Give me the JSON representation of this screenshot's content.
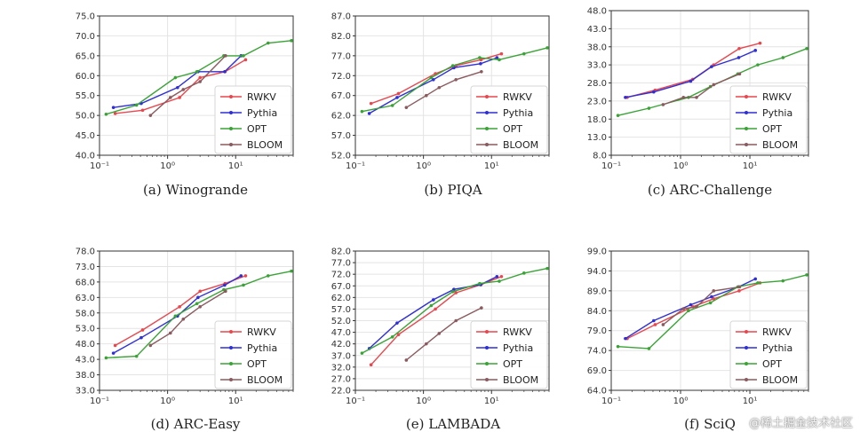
{
  "figure": {
    "watermark": "@稀土掘金技术社区",
    "series_colors": {
      "RWKV": "#e8474e",
      "Pythia": "#2f2fd6",
      "OPT": "#3aa336",
      "BLOOM": "#8a5a5e"
    },
    "x_tick_labels": [
      "10⁻¹",
      "10⁰",
      "10¹"
    ]
  },
  "chart_data": [
    {
      "type": "line",
      "title": "(a) Winogrande",
      "xscale": "log",
      "xlim": [
        0.1,
        70
      ],
      "ylim": [
        40,
        75
      ],
      "yticks": [
        "40.0",
        "45.0",
        "50.0",
        "55.0",
        "60.0",
        "65.0",
        "70.0",
        "75.0"
      ],
      "legend_position": "bottom-right",
      "series": [
        {
          "name": "RWKV",
          "x": [
            0.17,
            0.43,
            1.5,
            3,
            7,
            14
          ],
          "y": [
            50.5,
            51.3,
            54.5,
            59.5,
            61,
            64
          ]
        },
        {
          "name": "Pythia",
          "x": [
            0.16,
            0.41,
            1.4,
            2.8,
            6.9,
            12
          ],
          "y": [
            52,
            53,
            57,
            61,
            61,
            65
          ]
        },
        {
          "name": "OPT",
          "x": [
            0.125,
            0.35,
            1.3,
            2.7,
            6.7,
            13,
            30,
            66
          ],
          "y": [
            50.3,
            52.6,
            59.5,
            61,
            65,
            65,
            68.2,
            68.8
          ]
        },
        {
          "name": "BLOOM",
          "x": [
            0.56,
            1.1,
            1.7,
            3,
            7.1
          ],
          "y": [
            50,
            54.5,
            56.5,
            58.5,
            65
          ]
        }
      ]
    },
    {
      "type": "line",
      "title": "(b) PIQA",
      "xscale": "log",
      "xlim": [
        0.1,
        70
      ],
      "ylim": [
        52,
        87
      ],
      "yticks": [
        "52.0",
        "57.0",
        "62.0",
        "67.0",
        "72.0",
        "77.0",
        "82.0",
        "87.0"
      ],
      "legend_position": "bottom-right",
      "series": [
        {
          "name": "RWKV",
          "x": [
            0.17,
            0.43,
            1.5,
            3,
            7,
            14
          ],
          "y": [
            65,
            67.5,
            72.5,
            74.5,
            76,
            77.5
          ]
        },
        {
          "name": "Pythia",
          "x": [
            0.16,
            0.41,
            1.4,
            2.8,
            6.9,
            12
          ],
          "y": [
            62.5,
            66.5,
            71,
            74,
            75,
            76.5
          ]
        },
        {
          "name": "OPT",
          "x": [
            0.125,
            0.35,
            1.3,
            2.7,
            6.7,
            13,
            30,
            66
          ],
          "y": [
            63,
            64.5,
            71.5,
            74.5,
            76.5,
            76,
            77.5,
            79
          ]
        },
        {
          "name": "BLOOM",
          "x": [
            0.56,
            1.1,
            1.7,
            3,
            7.1
          ],
          "y": [
            64,
            67,
            69,
            71,
            73
          ]
        }
      ]
    },
    {
      "type": "line",
      "title": "(c) ARC-Challenge",
      "xscale": "log",
      "xlim": [
        0.1,
        70
      ],
      "ylim": [
        8,
        48
      ],
      "yticks": [
        "8.0",
        "13.0",
        "18.0",
        "23.0",
        "28.0",
        "33.0",
        "38.0",
        "43.0",
        "48.0"
      ],
      "legend_position": "bottom-right",
      "series": [
        {
          "name": "RWKV",
          "x": [
            0.17,
            0.43,
            1.5,
            3,
            7,
            14
          ],
          "y": [
            24,
            26,
            29,
            33,
            37.5,
            39
          ]
        },
        {
          "name": "Pythia",
          "x": [
            0.16,
            0.41,
            1.4,
            2.8,
            6.9,
            12
          ],
          "y": [
            24,
            25.5,
            28.5,
            32.5,
            35,
            37
          ]
        },
        {
          "name": "OPT",
          "x": [
            0.125,
            0.35,
            1.3,
            2.7,
            6.7,
            13,
            30,
            66
          ],
          "y": [
            19,
            21,
            24,
            27,
            30.5,
            33,
            35,
            37.5
          ]
        },
        {
          "name": "BLOOM",
          "x": [
            0.56,
            1.1,
            1.7,
            3,
            7.1
          ],
          "y": [
            22,
            24,
            24,
            27.5,
            30.5
          ]
        }
      ]
    },
    {
      "type": "line",
      "title": "(d) ARC-Easy",
      "xscale": "log",
      "xlim": [
        0.1,
        70
      ],
      "ylim": [
        33,
        78
      ],
      "yticks": [
        "33.0",
        "38.0",
        "43.0",
        "48.0",
        "53.0",
        "58.0",
        "63.0",
        "68.0",
        "73.0",
        "78.0"
      ],
      "legend_position": "bottom-right",
      "series": [
        {
          "name": "RWKV",
          "x": [
            0.17,
            0.43,
            1.5,
            3,
            7,
            14
          ],
          "y": [
            47.5,
            52.5,
            60,
            65,
            67.5,
            70
          ]
        },
        {
          "name": "Pythia",
          "x": [
            0.16,
            0.41,
            1.4,
            2.8,
            6.9,
            12
          ],
          "y": [
            45,
            50,
            57,
            63,
            67,
            70
          ]
        },
        {
          "name": "OPT",
          "x": [
            0.125,
            0.35,
            1.3,
            2.7,
            6.7,
            13,
            30,
            66
          ],
          "y": [
            43.5,
            44,
            57,
            61,
            65.5,
            67,
            70,
            71.5
          ]
        },
        {
          "name": "BLOOM",
          "x": [
            0.56,
            1.1,
            1.7,
            3,
            7.1
          ],
          "y": [
            47.5,
            51.5,
            56,
            60,
            65
          ]
        }
      ]
    },
    {
      "type": "line",
      "title": "(e) LAMBADA",
      "xscale": "log",
      "xlim": [
        0.1,
        70
      ],
      "ylim": [
        22,
        82
      ],
      "yticks": [
        "22.0",
        "27.0",
        "32.0",
        "37.0",
        "42.0",
        "47.0",
        "52.0",
        "57.0",
        "62.0",
        "67.0",
        "72.0",
        "77.0",
        "82.0"
      ],
      "legend_position": "bottom-right",
      "series": [
        {
          "name": "RWKV",
          "x": [
            0.17,
            0.43,
            1.5,
            3,
            7,
            14
          ],
          "y": [
            33,
            46,
            57,
            64,
            67.5,
            71
          ]
        },
        {
          "name": "Pythia",
          "x": [
            0.16,
            0.41,
            1.4,
            2.8,
            6.9,
            12
          ],
          "y": [
            40,
            51,
            61,
            65.5,
            67.5,
            71
          ]
        },
        {
          "name": "OPT",
          "x": [
            0.125,
            0.35,
            1.3,
            2.7,
            6.7,
            13,
            30,
            66
          ],
          "y": [
            38,
            45,
            58.5,
            64.5,
            68,
            69,
            72.5,
            74.5
          ]
        },
        {
          "name": "BLOOM",
          "x": [
            0.56,
            1.1,
            1.7,
            3,
            7.1
          ],
          "y": [
            35,
            42,
            46.5,
            52,
            57.5
          ]
        }
      ]
    },
    {
      "type": "line",
      "title": "(f) SciQ",
      "xscale": "log",
      "xlim": [
        0.1,
        70
      ],
      "ylim": [
        64,
        99
      ],
      "yticks": [
        "64.0",
        "69.0",
        "74.0",
        "79.0",
        "84.0",
        "89.0",
        "94.0",
        "99.0"
      ],
      "legend_position": "bottom-right",
      "series": [
        {
          "name": "RWKV",
          "x": [
            0.17,
            0.43,
            1.5,
            3,
            7,
            14
          ],
          "y": [
            77,
            80.5,
            85,
            87,
            89,
            91
          ]
        },
        {
          "name": "Pythia",
          "x": [
            0.16,
            0.41,
            1.4,
            2.8,
            6.9,
            12
          ],
          "y": [
            77,
            81.5,
            85.5,
            87.5,
            90,
            92
          ]
        },
        {
          "name": "OPT",
          "x": [
            0.125,
            0.35,
            1.3,
            2.7,
            6.7,
            13,
            30,
            66
          ],
          "y": [
            75,
            74.5,
            84,
            86,
            90,
            91,
            91.5,
            93
          ]
        },
        {
          "name": "BLOOM",
          "x": [
            0.56,
            1.1,
            1.7,
            3,
            7.1
          ],
          "y": [
            80.5,
            84.5,
            85,
            89,
            90
          ]
        }
      ]
    }
  ]
}
